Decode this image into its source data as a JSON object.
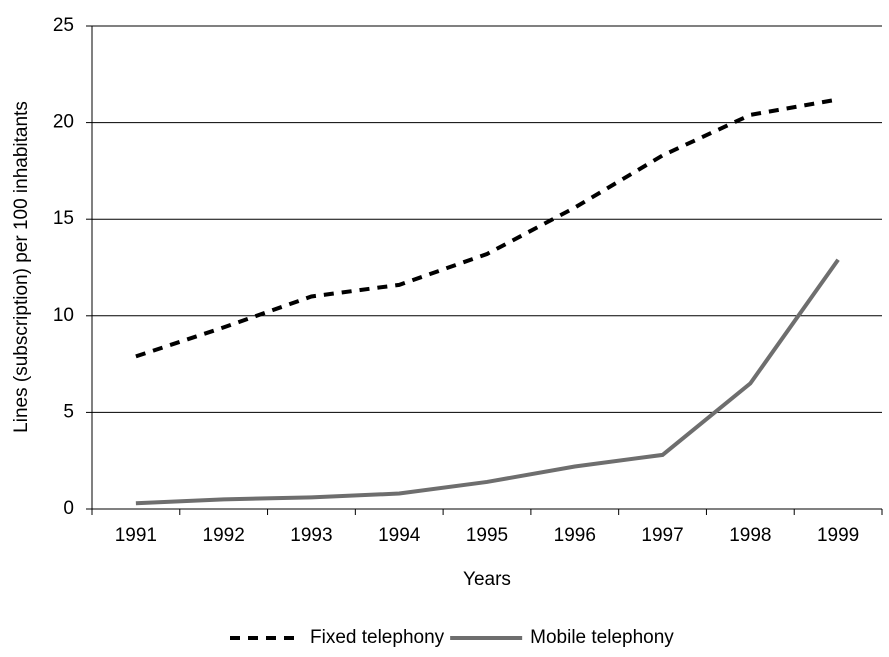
{
  "chart_data": {
    "type": "line",
    "x_label": "Years",
    "y_label": "Lines (subscription) per 100 inhabitants",
    "categories": [
      "1991",
      "1992",
      "1993",
      "1994",
      "1995",
      "1996",
      "1997",
      "1998",
      "1999"
    ],
    "series": [
      {
        "name": "Fixed telephony",
        "color": "#000000",
        "style": "dashed",
        "values": [
          7.9,
          9.4,
          11.0,
          11.6,
          13.2,
          15.6,
          18.3,
          20.4,
          21.2
        ]
      },
      {
        "name": "Mobile telephony",
        "color": "#6e6e6e",
        "style": "solid",
        "values": [
          0.3,
          0.5,
          0.6,
          0.8,
          1.4,
          2.2,
          2.8,
          6.5,
          12.9
        ]
      }
    ],
    "ylim": [
      0,
      25
    ],
    "yticks": [
      0,
      5,
      10,
      15,
      20,
      25
    ],
    "grid": true,
    "legend": "bottom"
  }
}
